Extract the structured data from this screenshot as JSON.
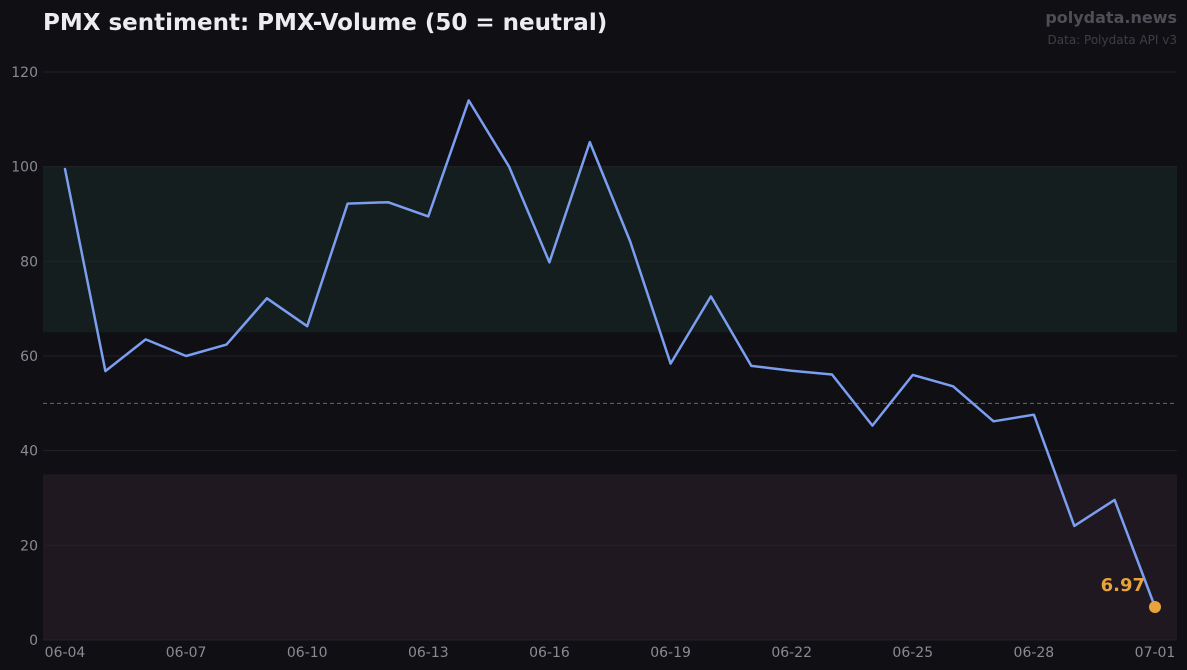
{
  "header": {
    "title": "PMX sentiment: PMX-Volume (50 = neutral)",
    "brand": "polydata.news",
    "source": "Data: Polydata API v3"
  },
  "colors": {
    "line": "#7b9ef0",
    "marker": "#e8a33c",
    "bull_band": "#151e1e",
    "bear_band": "#201820",
    "neutral_line": "#6a6a72",
    "grid": "#222228"
  },
  "chart_data": {
    "type": "line",
    "title": "PMX sentiment: PMX-Volume (50 = neutral)",
    "xlabel": "",
    "ylabel": "",
    "ylim": [
      0,
      120
    ],
    "yticks": [
      0,
      20,
      40,
      60,
      80,
      100,
      120
    ],
    "xtick_labels": [
      "06-04",
      "06-07",
      "06-10",
      "06-13",
      "06-16",
      "06-19",
      "06-22",
      "06-25",
      "06-28",
      "07-01"
    ],
    "grid": true,
    "neutral_level": 50,
    "bands": [
      {
        "from": 65,
        "to": 100,
        "kind": "bullish"
      },
      {
        "from": 0,
        "to": 35,
        "kind": "bearish"
      }
    ],
    "series": [
      {
        "x": [
          "06-04",
          "06-05",
          "06-06",
          "06-07",
          "06-08",
          "06-09",
          "06-10",
          "06-11",
          "06-12",
          "06-13",
          "06-14",
          "06-15",
          "06-16",
          "06-17",
          "06-18",
          "06-19",
          "06-20",
          "06-21",
          "06-22",
          "06-23",
          "06-24",
          "06-25",
          "06-26",
          "06-27",
          "06-28",
          "06-29",
          "06-30",
          "07-01"
        ],
        "values": [
          99.5,
          56.8,
          63.5,
          60.0,
          62.4,
          72.2,
          66.3,
          92.2,
          92.5,
          89.5,
          114.0,
          100.0,
          79.8,
          105.2,
          84.2,
          58.4,
          72.6,
          57.9,
          56.9,
          56.1,
          45.3,
          56.0,
          53.6,
          46.2,
          47.6,
          24.1,
          29.6,
          6.97
        ]
      }
    ],
    "last_value_label": "6.97"
  }
}
